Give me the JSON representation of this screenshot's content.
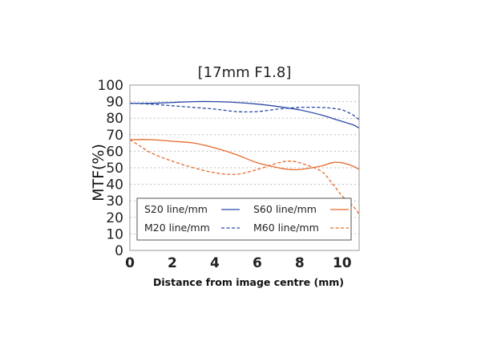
{
  "chart_data": {
    "type": "line",
    "title": "[17mm F1.8]",
    "xlabel": "Distance from image centre (mm)",
    "ylabel": "MTF(%)",
    "xlim": [
      0,
      10.8
    ],
    "ylim": [
      0,
      100
    ],
    "xticks": [
      "0",
      "2",
      "4",
      "6",
      "8",
      "10"
    ],
    "yticks": [
      "0",
      "10",
      "20",
      "30",
      "40",
      "50",
      "60",
      "70",
      "80",
      "90",
      "100"
    ],
    "grid": "horizontal-dotted",
    "legend_placement": "bottom-left",
    "series": [
      {
        "name": "S20 line/mm",
        "color": "#2b4aa8",
        "dash": "solid",
        "x": [
          0,
          1,
          2,
          3,
          4,
          5,
          6,
          7,
          8,
          9,
          9.5,
          10,
          10.5,
          10.8
        ],
        "y": [
          89,
          89,
          89.5,
          90,
          90,
          89.5,
          88.5,
          87,
          85,
          82,
          80,
          78,
          76,
          74
        ]
      },
      {
        "name": "M20 line/mm",
        "color": "#2b4aa8",
        "dash": "dashed",
        "x": [
          0,
          1,
          2,
          3,
          4,
          5,
          6,
          7,
          8,
          9,
          9.5,
          10,
          10.5,
          10.8
        ],
        "y": [
          89,
          88.5,
          87.5,
          86.5,
          85.5,
          84,
          84,
          85.5,
          86.5,
          86.5,
          86,
          85,
          82,
          79
        ]
      },
      {
        "name": "S60 line/mm",
        "color": "#e66a2c",
        "dash": "solid",
        "x": [
          0,
          1,
          2,
          3,
          4,
          5,
          6,
          7,
          7.5,
          8,
          9,
          9.5,
          10,
          10.5,
          10.8
        ],
        "y": [
          67,
          67,
          66,
          65,
          62,
          58,
          53,
          50,
          49,
          49,
          51,
          53,
          53,
          51,
          49
        ]
      },
      {
        "name": "M60 line/mm",
        "color": "#e66a2c",
        "dash": "dashed",
        "x": [
          0,
          0.5,
          1,
          2,
          3,
          4,
          5,
          6,
          7,
          7.5,
          8,
          9,
          9.5,
          10,
          10.5,
          10.8
        ],
        "y": [
          67,
          63,
          59,
          54,
          50,
          47,
          46,
          49,
          53,
          54,
          53,
          48,
          41,
          33,
          27,
          22
        ]
      }
    ]
  }
}
